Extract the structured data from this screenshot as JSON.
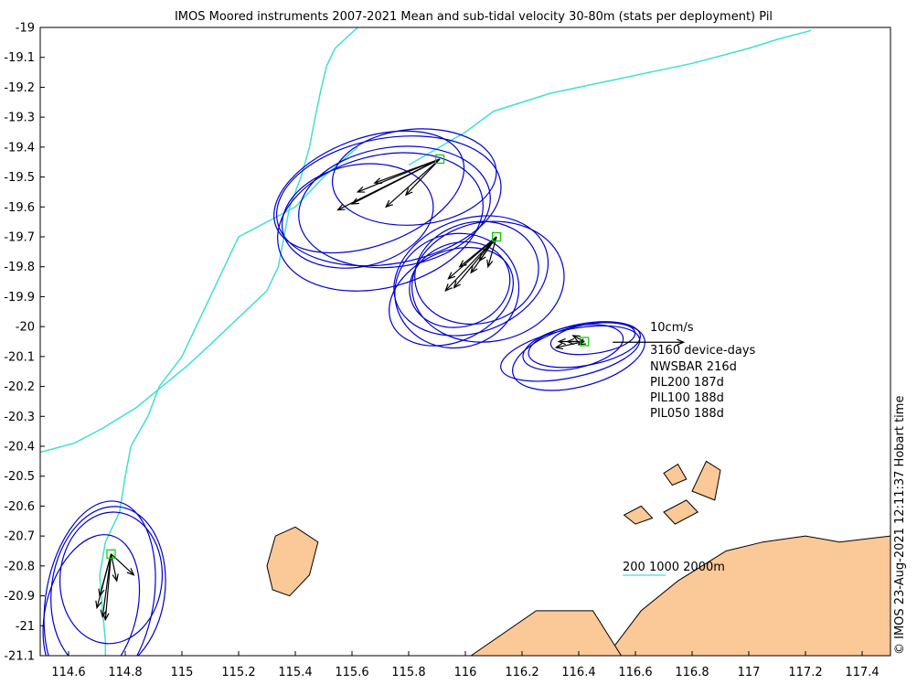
{
  "title": "IMOS Moored instruments 2007-2021 Mean and sub-tidal velocity 30-80m (stats per deployment) Pil",
  "copyright": "© IMOS 23-Aug-2021 12:11:37 Hobart time",
  "scale_arrow_label": "10cm/s",
  "legend": {
    "total": "3160 device-days",
    "entries": [
      "NWSBAR 216d",
      "PIL200 187d",
      "PIL100 188d",
      "PIL050 188d"
    ]
  },
  "isobath_label": "200 1000 2000m",
  "colors": {
    "ellipse": "#0000cc",
    "isobath": "#40e0d0",
    "land": "#fbc897",
    "station": "#00cc00",
    "arrow": "#000000"
  },
  "chart_data": {
    "type": "map",
    "xlim": [
      114.5,
      117.5
    ],
    "ylim": [
      -21.1,
      -19.0
    ],
    "x_ticks": [
      "114.6",
      "114.8",
      "115",
      "115.2",
      "115.4",
      "115.6",
      "115.8",
      "116",
      "116.2",
      "116.4",
      "116.6",
      "116.8",
      "117",
      "117.2",
      "117.4"
    ],
    "x_tick_values": [
      114.6,
      114.8,
      115.0,
      115.2,
      115.4,
      115.6,
      115.8,
      116.0,
      116.2,
      116.4,
      116.6,
      116.8,
      117.0,
      117.2,
      117.4
    ],
    "y_ticks": [
      "-19",
      "-19.1",
      "-19.2",
      "-19.3",
      "-19.4",
      "-19.5",
      "-19.6",
      "-19.7",
      "-19.8",
      "-19.9",
      "-20",
      "-20.1",
      "-20.2",
      "-20.3",
      "-20.4",
      "-20.5",
      "-20.6",
      "-20.7",
      "-20.8",
      "-20.9",
      "-21",
      "-21.1"
    ],
    "y_tick_values": [
      -19.0,
      -19.1,
      -19.2,
      -19.3,
      -19.4,
      -19.5,
      -19.6,
      -19.7,
      -19.8,
      -19.9,
      -20.0,
      -20.1,
      -20.2,
      -20.3,
      -20.4,
      -20.5,
      -20.6,
      -20.7,
      -20.8,
      -20.9,
      -21.0,
      -21.1
    ],
    "stations": [
      {
        "name": "NWSBAR",
        "lon": 115.91,
        "lat": -19.44,
        "arrows": [
          [
            115.55,
            -19.61
          ],
          [
            115.62,
            -19.55
          ],
          [
            115.72,
            -19.6
          ],
          [
            115.68,
            -19.52
          ],
          [
            115.79,
            -19.56
          ],
          [
            115.6,
            -19.59
          ]
        ],
        "ellipses": [
          [
            115.73,
            -19.58,
            0.4,
            0.21,
            -10
          ],
          [
            115.82,
            -19.5,
            0.29,
            0.16,
            -5
          ],
          [
            115.7,
            -19.65,
            0.37,
            0.22,
            -15
          ],
          [
            115.75,
            -19.6,
            0.34,
            0.2,
            -8
          ],
          [
            115.62,
            -19.63,
            0.27,
            0.17,
            -12
          ],
          [
            115.66,
            -19.55,
            0.35,
            0.18,
            -20
          ]
        ]
      },
      {
        "name": "PIL200",
        "lon": 116.11,
        "lat": -19.7,
        "arrows": [
          [
            115.94,
            -19.84
          ],
          [
            115.98,
            -19.8
          ],
          [
            115.93,
            -19.88
          ],
          [
            116.02,
            -19.82
          ],
          [
            116.05,
            -19.78
          ],
          [
            116.08,
            -19.8
          ],
          [
            115.96,
            -19.87
          ]
        ],
        "ellipses": [
          [
            115.97,
            -19.88,
            0.22,
            0.19,
            -15
          ],
          [
            116.02,
            -19.83,
            0.28,
            0.19,
            -20
          ],
          [
            115.95,
            -19.9,
            0.23,
            0.15,
            -25
          ],
          [
            116.08,
            -19.85,
            0.27,
            0.2,
            -10
          ],
          [
            115.98,
            -19.86,
            0.18,
            0.14,
            -18
          ],
          [
            116.04,
            -19.82,
            0.22,
            0.17,
            -12
          ]
        ]
      },
      {
        "name": "PIL100",
        "lon": 116.42,
        "lat": -20.05,
        "arrows": [
          [
            116.32,
            -20.07
          ],
          [
            116.36,
            -20.05
          ],
          [
            116.4,
            -20.06
          ],
          [
            116.38,
            -20.03
          ],
          [
            116.33,
            -20.05
          ]
        ],
        "ellipses": [
          [
            116.37,
            -20.09,
            0.25,
            0.08,
            -12
          ],
          [
            116.42,
            -20.06,
            0.2,
            0.07,
            -10
          ],
          [
            116.45,
            -20.04,
            0.15,
            0.05,
            -8
          ],
          [
            116.4,
            -20.1,
            0.24,
            0.1,
            -15
          ],
          [
            116.38,
            -20.07,
            0.18,
            0.07,
            -12
          ]
        ]
      },
      {
        "name": "PIL050",
        "lon": 114.75,
        "lat": -20.76,
        "arrows": [
          [
            114.72,
            -20.97
          ],
          [
            114.7,
            -20.94
          ],
          [
            114.77,
            -20.85
          ],
          [
            114.83,
            -20.83
          ],
          [
            114.73,
            -20.98
          ],
          [
            114.71,
            -20.9
          ]
        ],
        "ellipses": [
          [
            114.71,
            -20.91,
            0.19,
            0.33,
            10
          ],
          [
            114.75,
            -20.84,
            0.18,
            0.22,
            5
          ],
          [
            114.68,
            -20.95,
            0.16,
            0.26,
            15
          ],
          [
            114.74,
            -20.88,
            0.2,
            0.28,
            8
          ]
        ]
      }
    ],
    "scale_arrow": {
      "lon": 116.52,
      "lat": -20.04,
      "length_deg": 0.25
    },
    "isobaths": [
      [
        [
          115.62,
          -19.0
        ],
        [
          115.54,
          -19.07
        ],
        [
          115.51,
          -19.13
        ],
        [
          115.49,
          -19.21
        ],
        [
          115.47,
          -19.3
        ],
        [
          115.45,
          -19.4
        ],
        [
          115.42,
          -19.5
        ],
        [
          115.38,
          -19.6
        ],
        [
          115.36,
          -19.7
        ],
        [
          115.34,
          -19.8
        ],
        [
          115.3,
          -19.88
        ],
        [
          115.2,
          -19.97
        ],
        [
          115.1,
          -20.06
        ],
        [
          115.02,
          -20.13
        ],
        [
          114.93,
          -20.2
        ],
        [
          114.84,
          -20.27
        ],
        [
          114.72,
          -20.34
        ],
        [
          114.62,
          -20.39
        ],
        [
          114.5,
          -20.42
        ]
      ],
      [
        [
          115.62,
          -19.4
        ],
        [
          115.5,
          -19.5
        ],
        [
          115.4,
          -19.6
        ],
        [
          115.2,
          -19.7
        ],
        [
          115.15,
          -19.8
        ],
        [
          115.1,
          -19.9
        ],
        [
          115.05,
          -20.0
        ],
        [
          115.0,
          -20.1
        ],
        [
          114.92,
          -20.2
        ],
        [
          114.88,
          -20.3
        ],
        [
          114.82,
          -20.4
        ],
        [
          114.8,
          -20.5
        ],
        [
          114.78,
          -20.62
        ],
        [
          114.73,
          -20.72
        ],
        [
          114.71,
          -20.83
        ],
        [
          114.72,
          -20.95
        ],
        [
          114.73,
          -21.05
        ],
        [
          114.73,
          -21.1
        ]
      ],
      [
        [
          115.8,
          -19.46
        ],
        [
          116.0,
          -19.35
        ],
        [
          116.1,
          -19.28
        ],
        [
          116.3,
          -19.22
        ],
        [
          116.5,
          -19.18
        ],
        [
          116.7,
          -19.14
        ],
        [
          116.8,
          -19.12
        ],
        [
          117.0,
          -19.07
        ],
        [
          117.1,
          -19.04
        ],
        [
          117.22,
          -19.01
        ]
      ]
    ],
    "land_polygons": [
      [
        [
          116.5,
          -21.1
        ],
        [
          116.62,
          -20.95
        ],
        [
          116.75,
          -20.85
        ],
        [
          116.92,
          -20.75
        ],
        [
          117.05,
          -20.72
        ],
        [
          117.2,
          -20.7
        ],
        [
          117.32,
          -20.72
        ],
        [
          117.5,
          -20.7
        ],
        [
          117.5,
          -21.1
        ]
      ],
      [
        [
          116.02,
          -21.1
        ],
        [
          116.25,
          -20.95
        ],
        [
          116.45,
          -20.95
        ],
        [
          116.55,
          -21.1
        ]
      ],
      [
        [
          115.3,
          -20.8
        ],
        [
          115.33,
          -20.7
        ],
        [
          115.4,
          -20.67
        ],
        [
          115.48,
          -20.72
        ],
        [
          115.45,
          -20.83
        ],
        [
          115.38,
          -20.9
        ],
        [
          115.32,
          -20.88
        ]
      ],
      [
        [
          116.8,
          -20.55
        ],
        [
          116.85,
          -20.45
        ],
        [
          116.9,
          -20.48
        ],
        [
          116.88,
          -20.58
        ]
      ],
      [
        [
          116.7,
          -20.62
        ],
        [
          116.78,
          -20.58
        ],
        [
          116.82,
          -20.62
        ],
        [
          116.74,
          -20.66
        ]
      ],
      [
        [
          116.56,
          -20.63
        ],
        [
          116.62,
          -20.6
        ],
        [
          116.66,
          -20.64
        ],
        [
          116.6,
          -20.66
        ]
      ],
      [
        [
          116.7,
          -20.49
        ],
        [
          116.75,
          -20.46
        ],
        [
          116.78,
          -20.51
        ],
        [
          116.73,
          -20.53
        ]
      ]
    ]
  }
}
